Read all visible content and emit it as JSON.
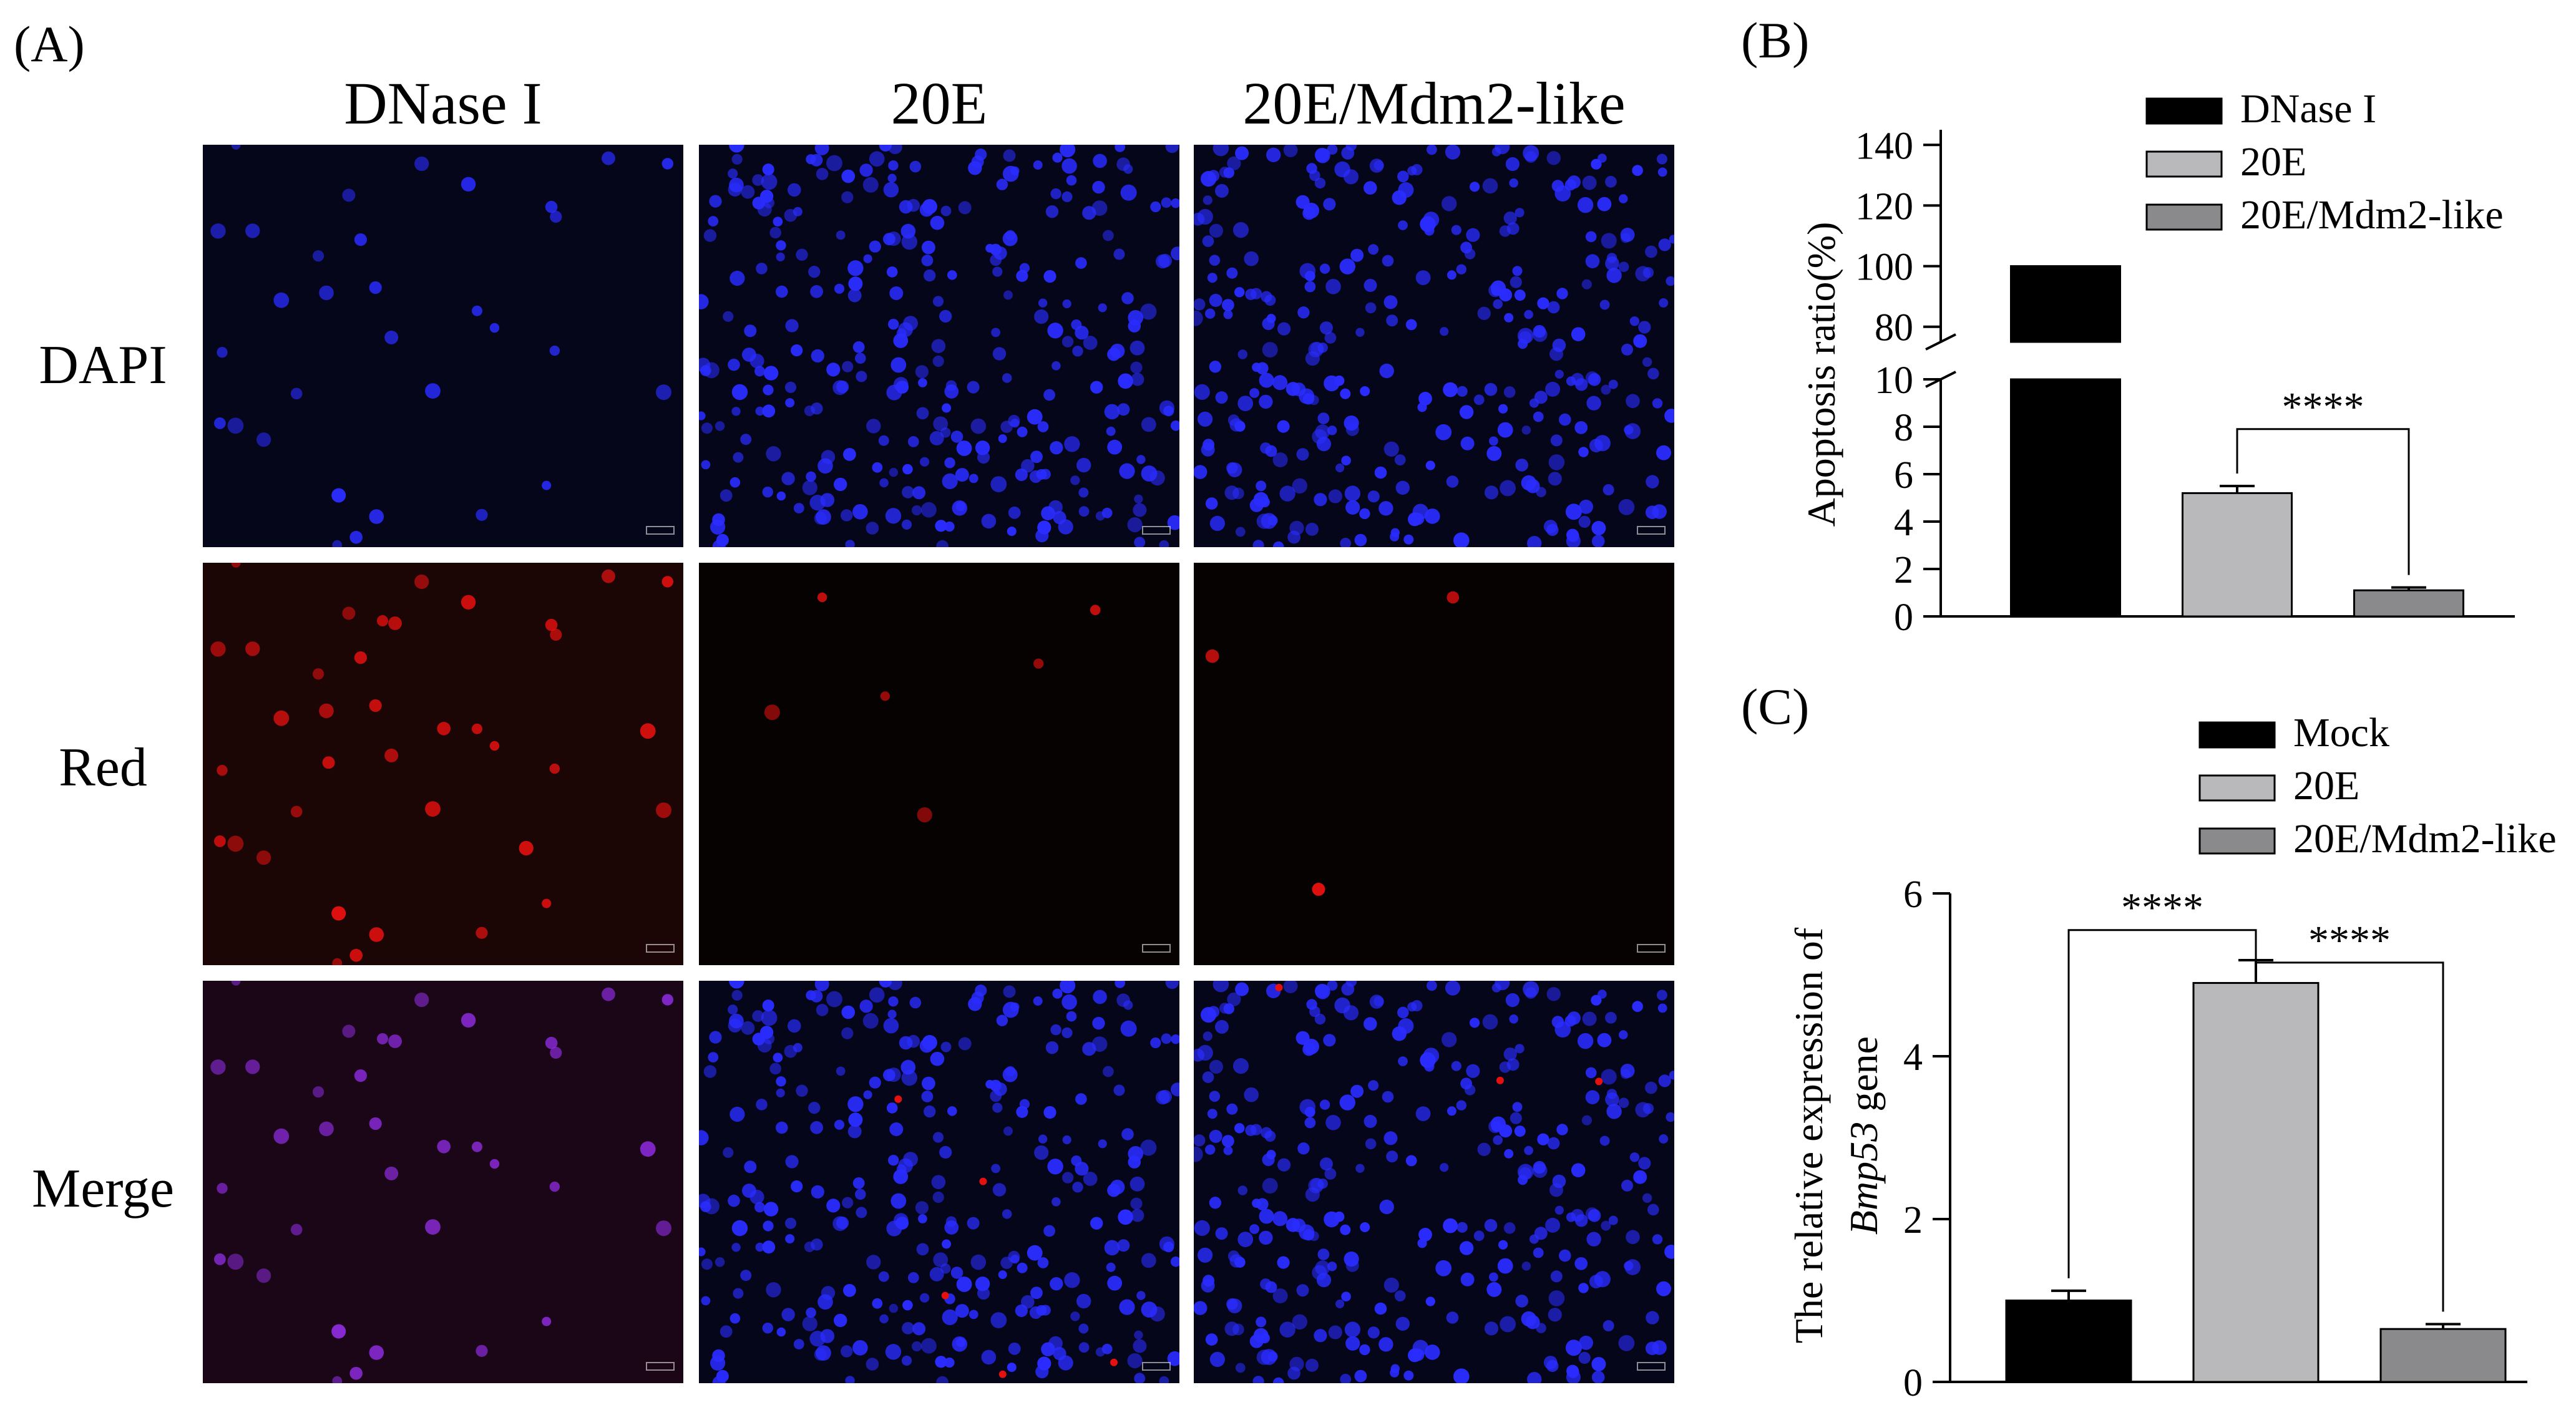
{
  "panel_a": {
    "label": "(A)",
    "columns": [
      "DNase I",
      "20E",
      "20E/Mdm2-like"
    ],
    "rows": [
      "DAPI",
      "Red",
      "Merge"
    ]
  },
  "colors": {
    "black_bar": "#000000",
    "light_gray_bar": "#b9b9bb",
    "dark_gray_bar": "#8a8a8c",
    "dapi_blue": "#2a2cff",
    "red_stain": "#e51010",
    "merge_purple": "#8a2ad8"
  },
  "chart_data": [
    {
      "panel_label": "(B)",
      "type": "bar",
      "ylabel": "Apoptosis ratio(%)",
      "categories": [
        "DNase I",
        "20E",
        "20E/Mdm2-like"
      ],
      "values": [
        100,
        5.2,
        1.1
      ],
      "errors": [
        0,
        0.3,
        0.12
      ],
      "bar_colors": [
        "#000000",
        "#b9b9bb",
        "#8a8a8c"
      ],
      "y_axis_broken": true,
      "ylim_lower": [
        0,
        10
      ],
      "yticks_lower": [
        "0",
        "2",
        "4",
        "6",
        "8",
        "10"
      ],
      "ylim_upper": [
        75,
        145
      ],
      "yticks_upper": [
        "80",
        "100",
        "120",
        "140"
      ],
      "legend": [
        "DNase I",
        "20E",
        "20E/Mdm2-like"
      ],
      "legend_position": "top-right",
      "significance": [
        {
          "between": [
            1,
            2
          ],
          "label": "****"
        }
      ]
    },
    {
      "panel_label": "(C)",
      "type": "bar",
      "ylabel_line1": "The relative expression of",
      "ylabel_line2_gene": "Bmp53",
      "ylabel_line2_suffix": " gene",
      "categories": [
        "Mock",
        "20E",
        "20E/Mdm2-like"
      ],
      "values": [
        1.0,
        4.9,
        0.65
      ],
      "errors": [
        0.12,
        0.28,
        0.06
      ],
      "bar_colors": [
        "#000000",
        "#b9b9bb",
        "#8a8a8c"
      ],
      "ylim": [
        0,
        6
      ],
      "yticks": [
        "0",
        "2",
        "4",
        "6"
      ],
      "legend": [
        "Mock",
        "20E",
        "20E/Mdm2-like"
      ],
      "legend_position": "top-right",
      "significance": [
        {
          "between": [
            0,
            1
          ],
          "label": "****"
        },
        {
          "between": [
            1,
            2
          ],
          "label": "****"
        }
      ]
    }
  ]
}
